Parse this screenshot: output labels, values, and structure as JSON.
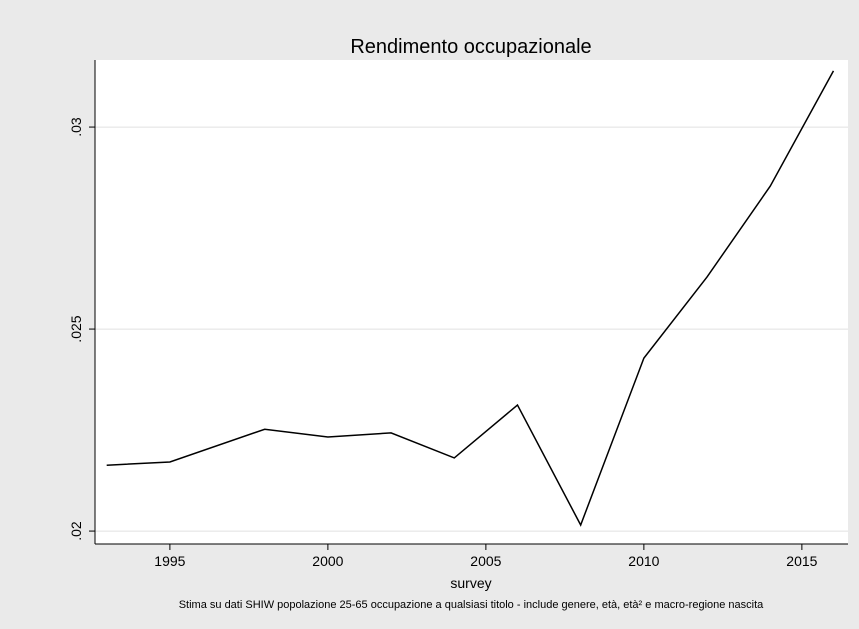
{
  "chart_data": {
    "type": "line",
    "title": "Rendimento occupazionale",
    "x_label": "survey",
    "note": "Stima su dati SHIW popolazione 25-65 occupazione a qualsiasi titolo - include genere, età, età² e macro-regione nascita",
    "x": [
      1993,
      1995,
      1998,
      2000,
      2002,
      2004,
      2006,
      2008,
      2010,
      2012,
      2014,
      2016
    ],
    "series": [
      {
        "name": "Rendimento occupazionale",
        "color": "#000000",
        "values": [
          0.02163,
          0.02171,
          0.02252,
          0.02233,
          0.02243,
          0.02181,
          0.02312,
          0.02015,
          0.02428,
          0.02629,
          0.02854,
          0.03139
        ]
      }
    ],
    "xlim": [
      1992.63,
      2016.46
    ],
    "xticks": [
      1995,
      2000,
      2005,
      2010,
      2015
    ],
    "ylim": [
      0.01968,
      0.03166
    ],
    "yticks": [
      {
        "value": 0.02,
        "label": ".02"
      },
      {
        "value": 0.025,
        "label": ".025"
      },
      {
        "value": 0.03,
        "label": ".03"
      }
    ],
    "grid": true
  }
}
